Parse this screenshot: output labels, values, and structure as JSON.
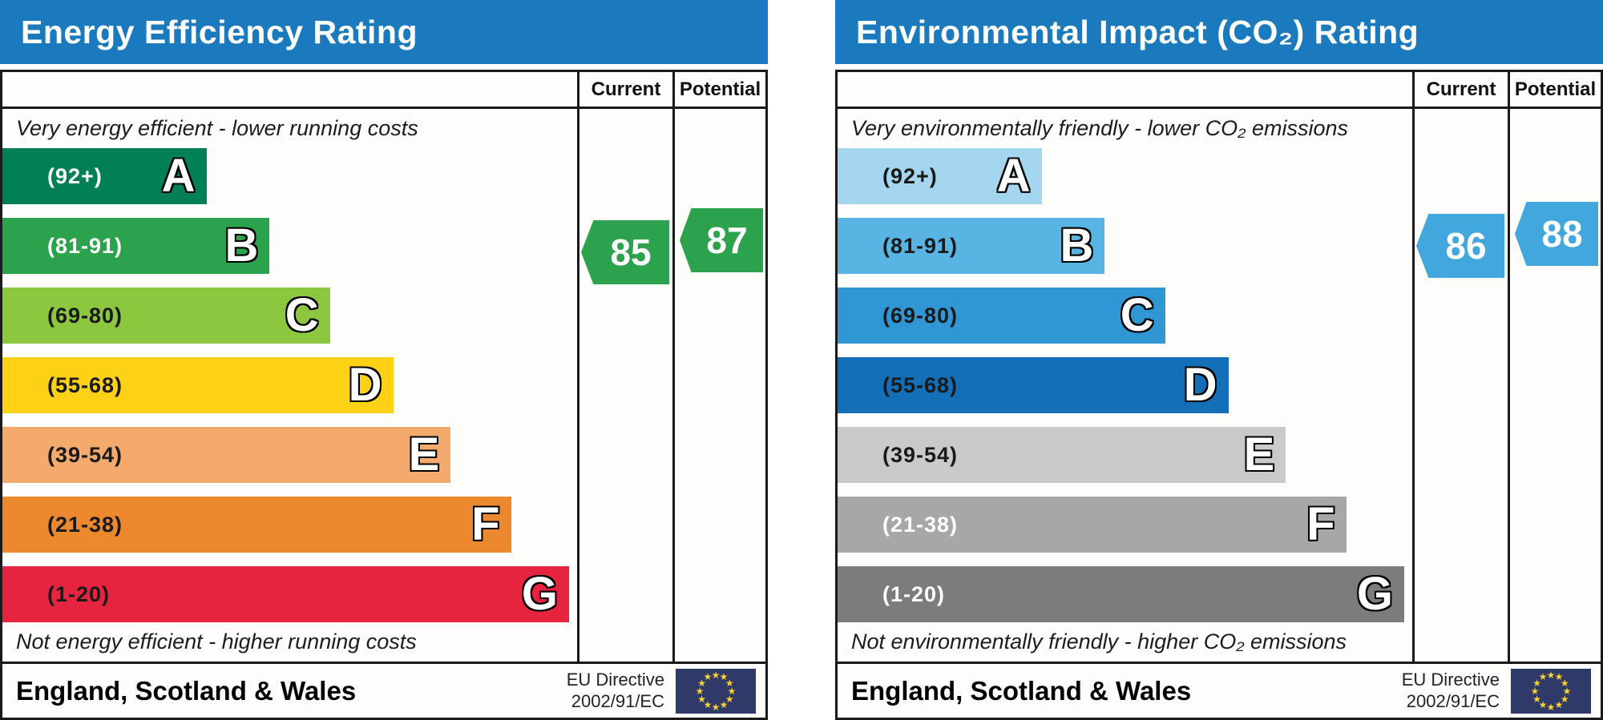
{
  "charts": [
    {
      "id": "energy-efficiency",
      "title": "Energy Efficiency Rating",
      "column_headers": {
        "current": "Current",
        "potential": "Potential"
      },
      "top_caption": "Very energy efficient - lower running costs",
      "bottom_caption": "Not energy efficient - higher running costs",
      "bands": [
        {
          "letter": "A",
          "range": "(92+)",
          "width_pct": 35.5,
          "color": "#008054",
          "label_color": "#ffffff"
        },
        {
          "letter": "B",
          "range": "(81-91)",
          "width_pct": 46.5,
          "color": "#2ca24c",
          "label_color": "#ffffff"
        },
        {
          "letter": "C",
          "range": "(69-80)",
          "width_pct": 57.0,
          "color": "#8dc63f",
          "label_color": "#1a1a1a"
        },
        {
          "letter": "D",
          "range": "(55-68)",
          "width_pct": 68.0,
          "color": "#fcd116",
          "label_color": "#1a1a1a"
        },
        {
          "letter": "E",
          "range": "(39-54)",
          "width_pct": 78.0,
          "color": "#f4a96d",
          "label_color": "#1a1a1a"
        },
        {
          "letter": "F",
          "range": "(21-38)",
          "width_pct": 88.5,
          "color": "#ec882d",
          "label_color": "#1a1a1a"
        },
        {
          "letter": "G",
          "range": "(1-20)",
          "width_pct": 98.6,
          "color": "#e7243f",
          "label_color": "#1a1a1a"
        }
      ],
      "current": {
        "value": "85",
        "color": "#2ca24c"
      },
      "potential": {
        "value": "87",
        "color": "#2ca24c"
      },
      "footer": {
        "region": "England, Scotland & Wales",
        "directive_line1": "EU Directive",
        "directive_line2": "2002/91/EC"
      }
    },
    {
      "id": "environmental-impact",
      "title": "Environmental Impact (CO₂) Rating",
      "column_headers": {
        "current": "Current",
        "potential": "Potential"
      },
      "top_caption": "Very environmentally friendly - lower CO₂ emissions",
      "bottom_caption": "Not environmentally friendly - higher CO₂ emissions",
      "bands": [
        {
          "letter": "A",
          "range": "(92+)",
          "width_pct": 35.5,
          "color": "#a5d6ef",
          "label_color": "#1a1a1a"
        },
        {
          "letter": "B",
          "range": "(81-91)",
          "width_pct": 46.5,
          "color": "#58b4e3",
          "label_color": "#1a1a1a"
        },
        {
          "letter": "C",
          "range": "(69-80)",
          "width_pct": 57.0,
          "color": "#3096d4",
          "label_color": "#1a1a1a"
        },
        {
          "letter": "D",
          "range": "(55-68)",
          "width_pct": 68.0,
          "color": "#1370b8",
          "label_color": "#1a1a1a"
        },
        {
          "letter": "E",
          "range": "(39-54)",
          "width_pct": 78.0,
          "color": "#cacaca",
          "label_color": "#1a1a1a"
        },
        {
          "letter": "F",
          "range": "(21-38)",
          "width_pct": 88.5,
          "color": "#a7a7a7",
          "label_color": "#ffffff"
        },
        {
          "letter": "G",
          "range": "(1-20)",
          "width_pct": 98.6,
          "color": "#7c7c7c",
          "label_color": "#ffffff"
        }
      ],
      "current": {
        "value": "86",
        "color": "#42a7dc"
      },
      "potential": {
        "value": "88",
        "color": "#42a7dc"
      },
      "footer": {
        "region": "England, Scotland & Wales",
        "directive_line1": "EU Directive",
        "directive_line2": "2002/91/EC"
      }
    }
  ],
  "chart_data": [
    {
      "type": "bar",
      "title": "Energy Efficiency Rating",
      "categories": [
        "A (92+)",
        "B (81-91)",
        "C (69-80)",
        "D (55-68)",
        "E (39-54)",
        "F (21-38)",
        "G (1-20)"
      ],
      "band_colors": [
        "#008054",
        "#2ca24c",
        "#8dc63f",
        "#fcd116",
        "#f4a96d",
        "#ec882d",
        "#e7243f"
      ],
      "series": [
        {
          "name": "Current",
          "values": [
            85
          ],
          "band": "B"
        },
        {
          "name": "Potential",
          "values": [
            87
          ],
          "band": "B"
        }
      ],
      "scale_range": [
        1,
        100
      ],
      "annotations": [
        "Very energy efficient - lower running costs",
        "Not energy efficient - higher running costs",
        "England, Scotland & Wales",
        "EU Directive 2002/91/EC"
      ]
    },
    {
      "type": "bar",
      "title": "Environmental Impact (CO₂) Rating",
      "categories": [
        "A (92+)",
        "B (81-91)",
        "C (69-80)",
        "D (55-68)",
        "E (39-54)",
        "F (21-38)",
        "G (1-20)"
      ],
      "band_colors": [
        "#a5d6ef",
        "#58b4e3",
        "#3096d4",
        "#1370b8",
        "#cacaca",
        "#a7a7a7",
        "#7c7c7c"
      ],
      "series": [
        {
          "name": "Current",
          "values": [
            86
          ],
          "band": "B"
        },
        {
          "name": "Potential",
          "values": [
            88
          ],
          "band": "B"
        }
      ],
      "scale_range": [
        1,
        100
      ],
      "annotations": [
        "Very environmentally friendly - lower CO₂ emissions",
        "Not environmentally friendly - higher CO₂ emissions",
        "England, Scotland & Wales",
        "EU Directive 2002/91/EC"
      ]
    }
  ]
}
